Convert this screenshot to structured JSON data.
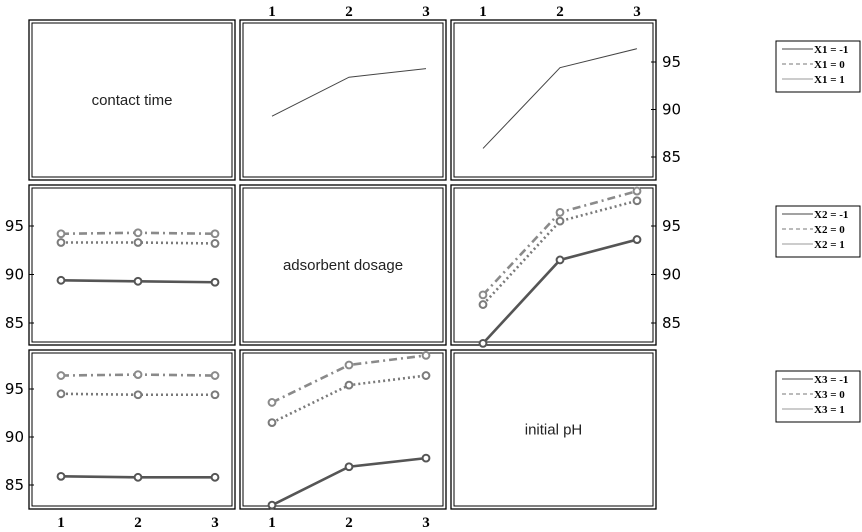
{
  "chart_data": {
    "type": "line",
    "layout": "interaction-plot-matrix",
    "x_ticks": [
      "1",
      "2",
      "3"
    ],
    "y_ticks": [
      "85",
      "90",
      "95"
    ],
    "ylim": [
      82,
      99
    ],
    "factors": [
      "contact time",
      "adsorbent dosage",
      "initial pH"
    ],
    "legends": [
      {
        "entries": [
          "X1 = -1",
          "X1 = 0",
          "X1 = 1"
        ]
      },
      {
        "entries": [
          "X2 = -1",
          "X2 = 0",
          "X2 = 1"
        ]
      },
      {
        "entries": [
          "X3 = -1",
          "X3 = 0",
          "X3 = 1"
        ]
      }
    ],
    "panels": [
      {
        "row": 0,
        "col": 1,
        "x": [
          1,
          2,
          3
        ],
        "markers": false,
        "series": [
          {
            "name": "X1 = -1",
            "style": "solid",
            "values": [
              89.3,
              93.4,
              94.3
            ]
          }
        ]
      },
      {
        "row": 0,
        "col": 2,
        "x": [
          1,
          2,
          3
        ],
        "markers": false,
        "series": [
          {
            "name": "X1 = -1",
            "style": "solid",
            "values": [
              85.9,
              94.4,
              96.4
            ]
          }
        ]
      },
      {
        "row": 1,
        "col": 0,
        "x": [
          1,
          2,
          3
        ],
        "markers": true,
        "series": [
          {
            "name": "X2 = -1",
            "style": "solid",
            "values": [
              89.4,
              89.3,
              89.2
            ]
          },
          {
            "name": "X2 = 0",
            "style": "dotted",
            "values": [
              93.3,
              93.3,
              93.2
            ]
          },
          {
            "name": "X2 = 1",
            "style": "dashdot",
            "values": [
              94.2,
              94.3,
              94.2
            ]
          }
        ]
      },
      {
        "row": 1,
        "col": 2,
        "x": [
          1,
          2,
          3
        ],
        "markers": true,
        "series": [
          {
            "name": "X2 = -1",
            "style": "solid",
            "values": [
              82.9,
              91.5,
              93.6
            ]
          },
          {
            "name": "X2 = 0",
            "style": "dotted",
            "values": [
              86.9,
              95.5,
              97.6
            ]
          },
          {
            "name": "X2 = 1",
            "style": "dashdot",
            "values": [
              87.9,
              96.4,
              98.6
            ]
          }
        ]
      },
      {
        "row": 2,
        "col": 0,
        "x": [
          1,
          2,
          3
        ],
        "markers": true,
        "series": [
          {
            "name": "X3 = -1",
            "style": "solid",
            "values": [
              85.9,
              85.8,
              85.8
            ]
          },
          {
            "name": "X3 = 0",
            "style": "dotted",
            "values": [
              94.5,
              94.4,
              94.4
            ]
          },
          {
            "name": "X3 = 1",
            "style": "dashdot",
            "values": [
              96.4,
              96.5,
              96.4
            ]
          }
        ]
      },
      {
        "row": 2,
        "col": 1,
        "x": [
          1,
          2,
          3
        ],
        "markers": true,
        "series": [
          {
            "name": "X3 = -1",
            "style": "solid",
            "values": [
              82.9,
              86.9,
              87.8
            ]
          },
          {
            "name": "X3 = 0",
            "style": "dotted",
            "values": [
              91.5,
              95.4,
              96.4
            ]
          },
          {
            "name": "X3 = 1",
            "style": "dashdot",
            "values": [
              93.6,
              97.5,
              98.5
            ]
          }
        ]
      }
    ],
    "grid": false,
    "legend_placement": "right of each row"
  }
}
